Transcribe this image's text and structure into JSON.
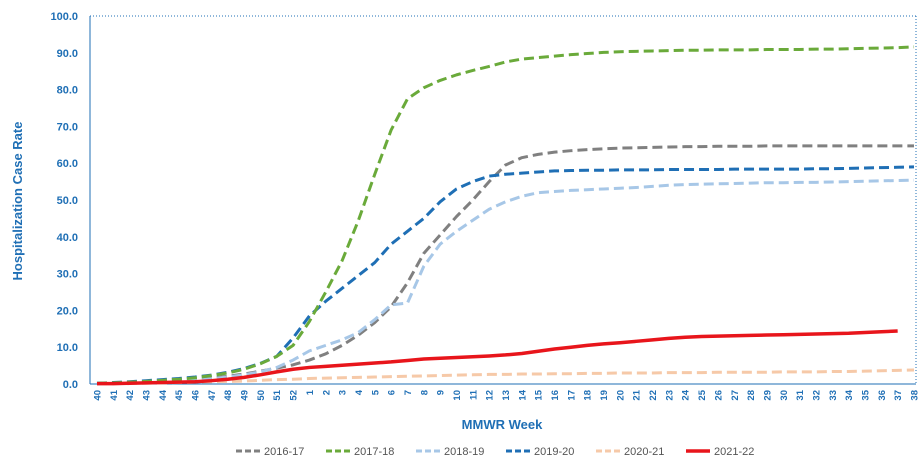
{
  "chart_data": {
    "type": "line",
    "title": "",
    "xlabel": "MMWR Week",
    "ylabel": "Hospitalization Case Rate",
    "ylim": [
      0,
      100
    ],
    "y_ticks": [
      "0.0",
      "10.0",
      "20.0",
      "30.0",
      "40.0",
      "50.0",
      "60.0",
      "70.0",
      "80.0",
      "90.0",
      "100.0"
    ],
    "categories": [
      "40",
      "41",
      "42",
      "43",
      "44",
      "45",
      "46",
      "47",
      "48",
      "49",
      "50",
      "51",
      "52",
      "1",
      "2",
      "3",
      "4",
      "5",
      "6",
      "7",
      "8",
      "9",
      "10",
      "11",
      "12",
      "13",
      "14",
      "15",
      "16",
      "17",
      "18",
      "19",
      "20",
      "21",
      "22",
      "23",
      "24",
      "25",
      "26",
      "27",
      "28",
      "29",
      "30",
      "31",
      "32",
      "33",
      "34",
      "35",
      "36",
      "37",
      "38"
    ],
    "legend_position": "bottom",
    "series": [
      {
        "name": "2016-17",
        "color": "#808080",
        "dashed": true,
        "values": [
          0.1,
          0.2,
          0.3,
          0.5,
          0.7,
          0.9,
          1.2,
          1.6,
          2.1,
          2.7,
          3.5,
          4.3,
          5.2,
          6.5,
          8.2,
          10.5,
          13.3,
          16.7,
          21.0,
          27.5,
          35.5,
          40.5,
          45.5,
          50.0,
          55.0,
          59.5,
          61.5,
          62.4,
          63.0,
          63.4,
          63.7,
          63.9,
          64.1,
          64.2,
          64.3,
          64.4,
          64.5,
          64.5,
          64.6,
          64.6,
          64.6,
          64.7,
          64.7,
          64.7,
          64.7,
          64.7,
          64.7,
          64.7,
          64.7,
          64.7,
          64.7
        ]
      },
      {
        "name": "2017-18",
        "color": "#6aaa3a",
        "dashed": true,
        "values": [
          0.2,
          0.3,
          0.5,
          0.7,
          1.0,
          1.3,
          1.7,
          2.3,
          3.0,
          4.0,
          5.5,
          7.5,
          10.5,
          17.0,
          25.0,
          33.5,
          44.5,
          57.0,
          69.0,
          77.5,
          80.5,
          82.5,
          84.0,
          85.2,
          86.3,
          87.5,
          88.3,
          88.7,
          89.1,
          89.5,
          89.8,
          90.1,
          90.3,
          90.4,
          90.5,
          90.6,
          90.7,
          90.7,
          90.8,
          90.8,
          90.8,
          90.9,
          90.9,
          90.9,
          91.0,
          91.0,
          91.1,
          91.2,
          91.3,
          91.4,
          91.6
        ]
      },
      {
        "name": "2018-19",
        "color": "#a7c7e7",
        "dashed": true,
        "values": [
          0.1,
          0.2,
          0.3,
          0.4,
          0.6,
          0.8,
          1.0,
          1.4,
          1.9,
          2.5,
          3.3,
          4.5,
          6.5,
          9.0,
          10.5,
          12.0,
          14.0,
          17.5,
          21.5,
          22.0,
          32.0,
          38.0,
          41.5,
          44.5,
          47.5,
          49.5,
          51.0,
          52.0,
          52.3,
          52.6,
          52.8,
          53.0,
          53.2,
          53.4,
          53.7,
          54.0,
          54.2,
          54.3,
          54.4,
          54.5,
          54.6,
          54.7,
          54.7,
          54.8,
          54.8,
          54.9,
          55.0,
          55.1,
          55.2,
          55.3,
          55.4
        ]
      },
      {
        "name": "2019-20",
        "color": "#1f6fb5",
        "dashed": true,
        "values": [
          0.2,
          0.4,
          0.6,
          0.9,
          1.2,
          1.5,
          1.9,
          2.4,
          3.2,
          4.2,
          5.6,
          7.5,
          12.5,
          18.5,
          22.5,
          26.0,
          29.5,
          33.0,
          38.0,
          41.5,
          45.0,
          49.5,
          53.0,
          55.0,
          56.5,
          57.0,
          57.3,
          57.6,
          57.9,
          58.0,
          58.1,
          58.1,
          58.2,
          58.2,
          58.2,
          58.3,
          58.3,
          58.3,
          58.3,
          58.4,
          58.4,
          58.4,
          58.4,
          58.4,
          58.5,
          58.5,
          58.6,
          58.7,
          58.8,
          58.9,
          59.0
        ]
      },
      {
        "name": "2020-21",
        "color": "#f6c9a8",
        "dashed": true,
        "values": [
          0.1,
          0.1,
          0.2,
          0.2,
          0.3,
          0.4,
          0.5,
          0.6,
          0.7,
          0.8,
          1.0,
          1.2,
          1.3,
          1.5,
          1.6,
          1.7,
          1.8,
          1.9,
          2.0,
          2.1,
          2.2,
          2.3,
          2.4,
          2.5,
          2.6,
          2.6,
          2.7,
          2.7,
          2.8,
          2.8,
          2.9,
          2.9,
          3.0,
          3.0,
          3.0,
          3.1,
          3.1,
          3.1,
          3.2,
          3.2,
          3.2,
          3.2,
          3.3,
          3.3,
          3.3,
          3.4,
          3.4,
          3.5,
          3.6,
          3.7,
          3.8
        ]
      },
      {
        "name": "2021-22",
        "color": "#e8151b",
        "dashed": false,
        "values": [
          0.1,
          0.1,
          0.2,
          0.3,
          0.4,
          0.5,
          0.6,
          0.9,
          1.3,
          1.8,
          2.5,
          3.3,
          4.0,
          4.5,
          4.8,
          5.1,
          5.4,
          5.7,
          6.0,
          6.4,
          6.8,
          7.0,
          7.2,
          7.4,
          7.6,
          7.9,
          8.3,
          8.9,
          9.5,
          10.0,
          10.5,
          10.9,
          11.2,
          11.6,
          12.0,
          12.4,
          12.7,
          12.9,
          13.0,
          13.1,
          13.2,
          13.3,
          13.4,
          13.5,
          13.6,
          13.7,
          13.8,
          14.0,
          14.2,
          14.4,
          null
        ]
      }
    ]
  }
}
